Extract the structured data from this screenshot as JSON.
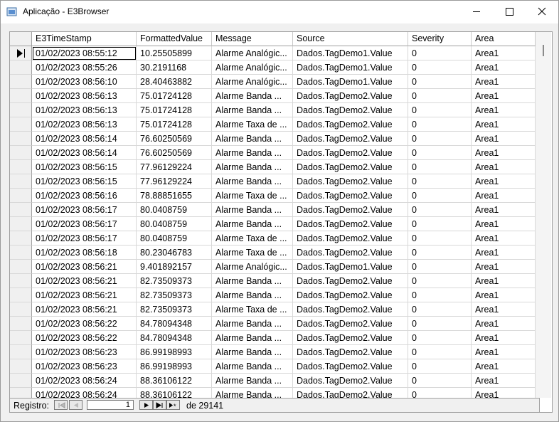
{
  "window": {
    "title": "Aplicação - E3Browser"
  },
  "table": {
    "columns": [
      "E3TimeStamp",
      "FormattedValue",
      "Message",
      "Source",
      "Severity",
      "Area"
    ],
    "rows": [
      [
        "01/02/2023 08:55:12",
        "10.25505899",
        "Alarme Analógic...",
        "Dados.TagDemo1.Value",
        "0",
        "Area1"
      ],
      [
        "01/02/2023 08:55:26",
        "30.2191168",
        "Alarme Analógic...",
        "Dados.TagDemo1.Value",
        "0",
        "Area1"
      ],
      [
        "01/02/2023 08:56:10",
        "28.40463882",
        "Alarme Analógic...",
        "Dados.TagDemo1.Value",
        "0",
        "Area1"
      ],
      [
        "01/02/2023 08:56:13",
        "75.01724128",
        "Alarme Banda ...",
        "Dados.TagDemo2.Value",
        "0",
        "Area1"
      ],
      [
        "01/02/2023 08:56:13",
        "75.01724128",
        "Alarme Banda ...",
        "Dados.TagDemo2.Value",
        "0",
        "Area1"
      ],
      [
        "01/02/2023 08:56:13",
        "75.01724128",
        "Alarme Taxa de ...",
        "Dados.TagDemo2.Value",
        "0",
        "Area1"
      ],
      [
        "01/02/2023 08:56:14",
        "76.60250569",
        "Alarme Banda ...",
        "Dados.TagDemo2.Value",
        "0",
        "Area1"
      ],
      [
        "01/02/2023 08:56:14",
        "76.60250569",
        "Alarme Banda ...",
        "Dados.TagDemo2.Value",
        "0",
        "Area1"
      ],
      [
        "01/02/2023 08:56:15",
        "77.96129224",
        "Alarme Banda ...",
        "Dados.TagDemo2.Value",
        "0",
        "Area1"
      ],
      [
        "01/02/2023 08:56:15",
        "77.96129224",
        "Alarme Banda ...",
        "Dados.TagDemo2.Value",
        "0",
        "Area1"
      ],
      [
        "01/02/2023 08:56:16",
        "78.88851655",
        "Alarme Taxa de ...",
        "Dados.TagDemo2.Value",
        "0",
        "Area1"
      ],
      [
        "01/02/2023 08:56:17",
        "80.0408759",
        "Alarme Banda ...",
        "Dados.TagDemo2.Value",
        "0",
        "Area1"
      ],
      [
        "01/02/2023 08:56:17",
        "80.0408759",
        "Alarme Banda ...",
        "Dados.TagDemo2.Value",
        "0",
        "Area1"
      ],
      [
        "01/02/2023 08:56:17",
        "80.0408759",
        "Alarme Taxa de ...",
        "Dados.TagDemo2.Value",
        "0",
        "Area1"
      ],
      [
        "01/02/2023 08:56:18",
        "80.23046783",
        "Alarme Taxa de ...",
        "Dados.TagDemo2.Value",
        "0",
        "Area1"
      ],
      [
        "01/02/2023 08:56:21",
        "9.401892157",
        "Alarme Analógic...",
        "Dados.TagDemo1.Value",
        "0",
        "Area1"
      ],
      [
        "01/02/2023 08:56:21",
        "82.73509373",
        "Alarme Banda ...",
        "Dados.TagDemo2.Value",
        "0",
        "Area1"
      ],
      [
        "01/02/2023 08:56:21",
        "82.73509373",
        "Alarme Banda ...",
        "Dados.TagDemo2.Value",
        "0",
        "Area1"
      ],
      [
        "01/02/2023 08:56:21",
        "82.73509373",
        "Alarme Taxa de ...",
        "Dados.TagDemo2.Value",
        "0",
        "Area1"
      ],
      [
        "01/02/2023 08:56:22",
        "84.78094348",
        "Alarme Banda ...",
        "Dados.TagDemo2.Value",
        "0",
        "Area1"
      ],
      [
        "01/02/2023 08:56:22",
        "84.78094348",
        "Alarme Banda ...",
        "Dados.TagDemo2.Value",
        "0",
        "Area1"
      ],
      [
        "01/02/2023 08:56:23",
        "86.99198993",
        "Alarme Banda ...",
        "Dados.TagDemo2.Value",
        "0",
        "Area1"
      ],
      [
        "01/02/2023 08:56:23",
        "86.99198993",
        "Alarme Banda ...",
        "Dados.TagDemo2.Value",
        "0",
        "Area1"
      ],
      [
        "01/02/2023 08:56:24",
        "88.36106122",
        "Alarme Banda ...",
        "Dados.TagDemo2.Value",
        "0",
        "Area1"
      ],
      [
        "01/02/2023 08:56:24",
        "88.36106122",
        "Alarme Banda ...",
        "Dados.TagDemo2.Value",
        "0",
        "Area1"
      ]
    ]
  },
  "navigator": {
    "label": "Registro:",
    "current": "1",
    "total": "de 29141"
  }
}
